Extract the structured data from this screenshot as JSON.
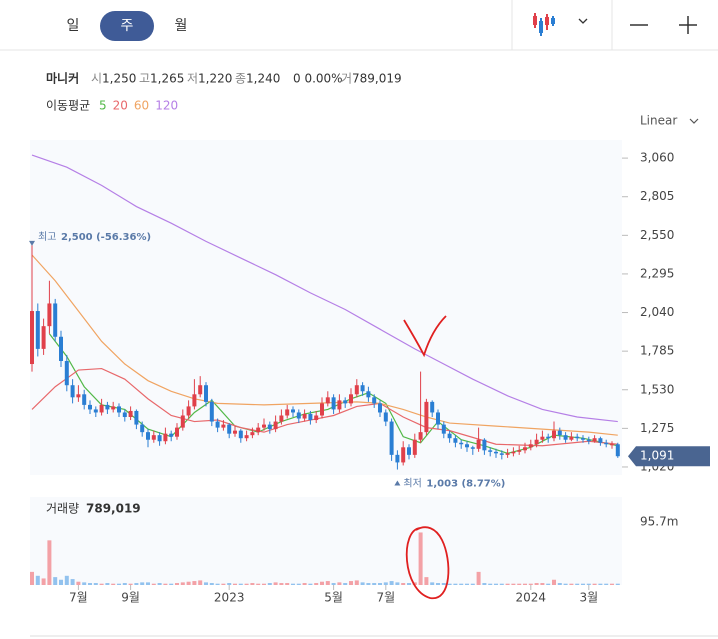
{
  "toolbar": {
    "tabs": [
      "일",
      "주",
      "월"
    ],
    "active_tab": 1
  },
  "chart_data": {
    "type": "candlestick",
    "title": "마니커",
    "quote": [
      {
        "label": "시",
        "value": "1,250"
      },
      {
        "label": "고",
        "value": "1,265"
      },
      {
        "label": "저",
        "value": "1,220"
      },
      {
        "label": "종",
        "value": "1,240"
      }
    ],
    "change": "0 0.00%",
    "volume_short": {
      "label": "거",
      "value": "789,019"
    },
    "ma_title": "이동평균",
    "scale_mode": "Linear",
    "up_color": "#e0404a",
    "down_color": "#2a7ed3",
    "up_volume_color": "#f3a1a6",
    "down_volume_color": "#92c2ee",
    "ylim": [
      1000,
      3140
    ],
    "yticks": [
      {
        "value": 1020,
        "label": "1,020"
      },
      {
        "value": 1275,
        "label": "1,275"
      },
      {
        "value": 1530,
        "label": "1,530"
      },
      {
        "value": 1785,
        "label": "1,785"
      },
      {
        "value": 2040,
        "label": "2,040"
      },
      {
        "value": 2295,
        "label": "2,295"
      },
      {
        "value": 2550,
        "label": "2,550"
      },
      {
        "value": 2805,
        "label": "2,805"
      },
      {
        "value": 3060,
        "label": "3,060"
      }
    ],
    "xticks": [
      {
        "value": 8,
        "label": "7월"
      },
      {
        "value": 17,
        "label": "9월"
      },
      {
        "value": 34,
        "label": "2023"
      },
      {
        "value": 52,
        "label": "5월"
      },
      {
        "value": 61,
        "label": "7월"
      },
      {
        "value": 86,
        "label": "2024"
      },
      {
        "value": 96,
        "label": "3월"
      }
    ],
    "candles": [
      [
        1700,
        2500,
        1650,
        2050
      ],
      [
        2050,
        2100,
        1750,
        1800
      ],
      [
        1800,
        2000,
        1760,
        1950
      ],
      [
        1950,
        2250,
        1900,
        2100
      ],
      [
        2100,
        2130,
        1850,
        1880
      ],
      [
        1880,
        1920,
        1680,
        1720
      ],
      [
        1720,
        1760,
        1520,
        1560
      ],
      [
        1560,
        1600,
        1440,
        1480
      ],
      [
        1480,
        1560,
        1450,
        1500
      ],
      [
        1500,
        1530,
        1400,
        1430
      ],
      [
        1430,
        1460,
        1370,
        1400
      ],
      [
        1400,
        1420,
        1350,
        1380
      ],
      [
        1380,
        1470,
        1360,
        1430
      ],
      [
        1430,
        1450,
        1370,
        1400
      ],
      [
        1400,
        1450,
        1380,
        1420
      ],
      [
        1420,
        1440,
        1350,
        1380
      ],
      [
        1380,
        1400,
        1320,
        1350
      ],
      [
        1350,
        1420,
        1330,
        1390
      ],
      [
        1390,
        1400,
        1270,
        1300
      ],
      [
        1300,
        1320,
        1220,
        1250
      ],
      [
        1250,
        1270,
        1150,
        1200
      ],
      [
        1200,
        1260,
        1180,
        1230
      ],
      [
        1230,
        1250,
        1160,
        1190
      ],
      [
        1190,
        1280,
        1170,
        1240
      ],
      [
        1240,
        1260,
        1190,
        1220
      ],
      [
        1220,
        1310,
        1200,
        1280
      ],
      [
        1280,
        1400,
        1260,
        1360
      ],
      [
        1360,
        1460,
        1340,
        1420
      ],
      [
        1420,
        1600,
        1400,
        1500
      ],
      [
        1500,
        1620,
        1480,
        1560
      ],
      [
        1560,
        1580,
        1420,
        1450
      ],
      [
        1450,
        1470,
        1290,
        1320
      ],
      [
        1320,
        1340,
        1250,
        1280
      ],
      [
        1280,
        1330,
        1260,
        1300
      ],
      [
        1300,
        1310,
        1210,
        1240
      ],
      [
        1240,
        1290,
        1220,
        1260
      ],
      [
        1260,
        1270,
        1180,
        1210
      ],
      [
        1210,
        1260,
        1190,
        1230
      ],
      [
        1230,
        1280,
        1210,
        1250
      ],
      [
        1250,
        1310,
        1230,
        1280
      ],
      [
        1280,
        1340,
        1260,
        1300
      ],
      [
        1300,
        1320,
        1240,
        1270
      ],
      [
        1270,
        1360,
        1250,
        1320
      ],
      [
        1320,
        1400,
        1300,
        1360
      ],
      [
        1360,
        1430,
        1340,
        1400
      ],
      [
        1400,
        1420,
        1350,
        1380
      ],
      [
        1380,
        1400,
        1310,
        1340
      ],
      [
        1340,
        1400,
        1320,
        1370
      ],
      [
        1370,
        1390,
        1300,
        1330
      ],
      [
        1330,
        1390,
        1310,
        1360
      ],
      [
        1360,
        1480,
        1340,
        1440
      ],
      [
        1440,
        1520,
        1420,
        1480
      ],
      [
        1480,
        1500,
        1370,
        1400
      ],
      [
        1400,
        1500,
        1380,
        1460
      ],
      [
        1460,
        1480,
        1410,
        1440
      ],
      [
        1440,
        1540,
        1420,
        1500
      ],
      [
        1500,
        1600,
        1480,
        1560
      ],
      [
        1560,
        1580,
        1490,
        1520
      ],
      [
        1520,
        1550,
        1450,
        1480
      ],
      [
        1480,
        1500,
        1410,
        1440
      ],
      [
        1440,
        1460,
        1350,
        1380
      ],
      [
        1380,
        1400,
        1290,
        1320
      ],
      [
        1320,
        1340,
        1060,
        1100
      ],
      [
        1100,
        1130,
        1003,
        1050
      ],
      [
        1050,
        1190,
        1030,
        1150
      ],
      [
        1150,
        1170,
        1070,
        1100
      ],
      [
        1100,
        1240,
        1080,
        1200
      ],
      [
        1200,
        1650,
        1180,
        1250
      ],
      [
        1250,
        1470,
        1230,
        1450
      ],
      [
        1450,
        1460,
        1350,
        1380
      ],
      [
        1380,
        1400,
        1270,
        1300
      ],
      [
        1300,
        1320,
        1210,
        1240
      ],
      [
        1240,
        1260,
        1180,
        1210
      ],
      [
        1210,
        1230,
        1150,
        1180
      ],
      [
        1180,
        1200,
        1140,
        1170
      ],
      [
        1170,
        1190,
        1120,
        1150
      ],
      [
        1150,
        1160,
        1100,
        1140
      ],
      [
        1140,
        1280,
        1120,
        1200
      ],
      [
        1200,
        1210,
        1100,
        1130
      ],
      [
        1130,
        1150,
        1090,
        1120
      ],
      [
        1120,
        1140,
        1080,
        1110
      ],
      [
        1110,
        1130,
        1070,
        1100
      ],
      [
        1100,
        1140,
        1080,
        1110
      ],
      [
        1110,
        1150,
        1090,
        1120
      ],
      [
        1120,
        1160,
        1100,
        1130
      ],
      [
        1130,
        1180,
        1110,
        1150
      ],
      [
        1150,
        1200,
        1130,
        1170
      ],
      [
        1170,
        1240,
        1150,
        1200
      ],
      [
        1200,
        1260,
        1180,
        1220
      ],
      [
        1220,
        1240,
        1180,
        1210
      ],
      [
        1210,
        1320,
        1190,
        1260
      ],
      [
        1260,
        1280,
        1200,
        1230
      ],
      [
        1230,
        1250,
        1180,
        1200
      ],
      [
        1200,
        1250,
        1190,
        1220
      ],
      [
        1220,
        1240,
        1190,
        1210
      ],
      [
        1210,
        1230,
        1180,
        1200
      ],
      [
        1200,
        1220,
        1170,
        1190
      ],
      [
        1190,
        1230,
        1180,
        1210
      ],
      [
        1210,
        1220,
        1160,
        1180
      ],
      [
        1180,
        1200,
        1150,
        1170
      ],
      [
        1170,
        1190,
        1140,
        1170
      ],
      [
        1170,
        1180,
        1080,
        1091
      ]
    ],
    "series": [
      {
        "name": "5",
        "color": "#52b848",
        "x": [
          3,
          6,
          9,
          12,
          16,
          20,
          24,
          28,
          31,
          35,
          39,
          43,
          47,
          51,
          55,
          58,
          61,
          64,
          67,
          70,
          74,
          78,
          82,
          86,
          90,
          95,
          101
        ],
        "values": [
          1900,
          1750,
          1550,
          1430,
          1400,
          1270,
          1220,
          1380,
          1460,
          1290,
          1250,
          1320,
          1370,
          1400,
          1470,
          1510,
          1440,
          1220,
          1180,
          1320,
          1200,
          1160,
          1110,
          1150,
          1230,
          1210,
          1160
        ]
      },
      {
        "name": "20",
        "color": "#e8686b",
        "x": [
          0,
          4,
          8,
          12,
          16,
          20,
          24,
          28,
          32,
          36,
          40,
          44,
          48,
          52,
          56,
          60,
          64,
          68,
          72,
          80,
          88,
          96,
          101
        ],
        "values": [
          1400,
          1550,
          1660,
          1670,
          1600,
          1470,
          1360,
          1320,
          1330,
          1280,
          1250,
          1300,
          1330,
          1360,
          1420,
          1440,
          1350,
          1280,
          1260,
          1170,
          1160,
          1190,
          1170
        ]
      },
      {
        "name": "60",
        "color": "#f0a462",
        "x": [
          0,
          4,
          8,
          12,
          16,
          20,
          24,
          28,
          32,
          40,
          48,
          56,
          60,
          64,
          68,
          72,
          80,
          88,
          96,
          101
        ],
        "values": [
          2420,
          2250,
          2050,
          1850,
          1700,
          1590,
          1520,
          1470,
          1440,
          1430,
          1440,
          1450,
          1440,
          1400,
          1350,
          1310,
          1290,
          1270,
          1250,
          1230
        ]
      },
      {
        "name": "120",
        "color": "#b57fe6",
        "x": [
          0,
          6,
          12,
          18,
          24,
          30,
          36,
          42,
          48,
          54,
          60,
          66,
          70,
          76,
          82,
          88,
          94,
          101
        ],
        "values": [
          3080,
          3000,
          2880,
          2740,
          2630,
          2510,
          2400,
          2290,
          2170,
          2060,
          1930,
          1800,
          1720,
          1600,
          1490,
          1400,
          1350,
          1320
        ]
      }
    ],
    "high_label": "최고",
    "high_text": "2,500 (-56.36%)",
    "high_value": 2500,
    "high_index": 0,
    "low_label": "최저",
    "low_text": "1,003 (8.77%)",
    "low_value": 1003,
    "low_index": 63,
    "last_price": {
      "value": 1091,
      "label": "1,091"
    },
    "volume_title": "거래량",
    "volume_text": "789,019",
    "volume_ylim": [
      0,
      134
    ],
    "volume_yticks": [
      {
        "value": 95.7,
        "label": "95.7m"
      }
    ],
    "volume": [
      20,
      14,
      10,
      68,
      12,
      8,
      14,
      9,
      5,
      4,
      3,
      3,
      2,
      3,
      2,
      2,
      3,
      2,
      3,
      4,
      4,
      2,
      3,
      2,
      2,
      3,
      4,
      5,
      6,
      7,
      4,
      3,
      2,
      2,
      3,
      2,
      2,
      2,
      3,
      2,
      2,
      3,
      4,
      3,
      3,
      2,
      2,
      3,
      2,
      3,
      5,
      6,
      3,
      4,
      3,
      6,
      7,
      4,
      3,
      3,
      3,
      4,
      6,
      4,
      3,
      3,
      4,
      80,
      12,
      4,
      3,
      3,
      2,
      2,
      2,
      2,
      2,
      20,
      3,
      2,
      2,
      2,
      2,
      2,
      2,
      2,
      2,
      3,
      3,
      2,
      8,
      3,
      2,
      2,
      2,
      2,
      2,
      2,
      2,
      2,
      2,
      2
    ]
  }
}
